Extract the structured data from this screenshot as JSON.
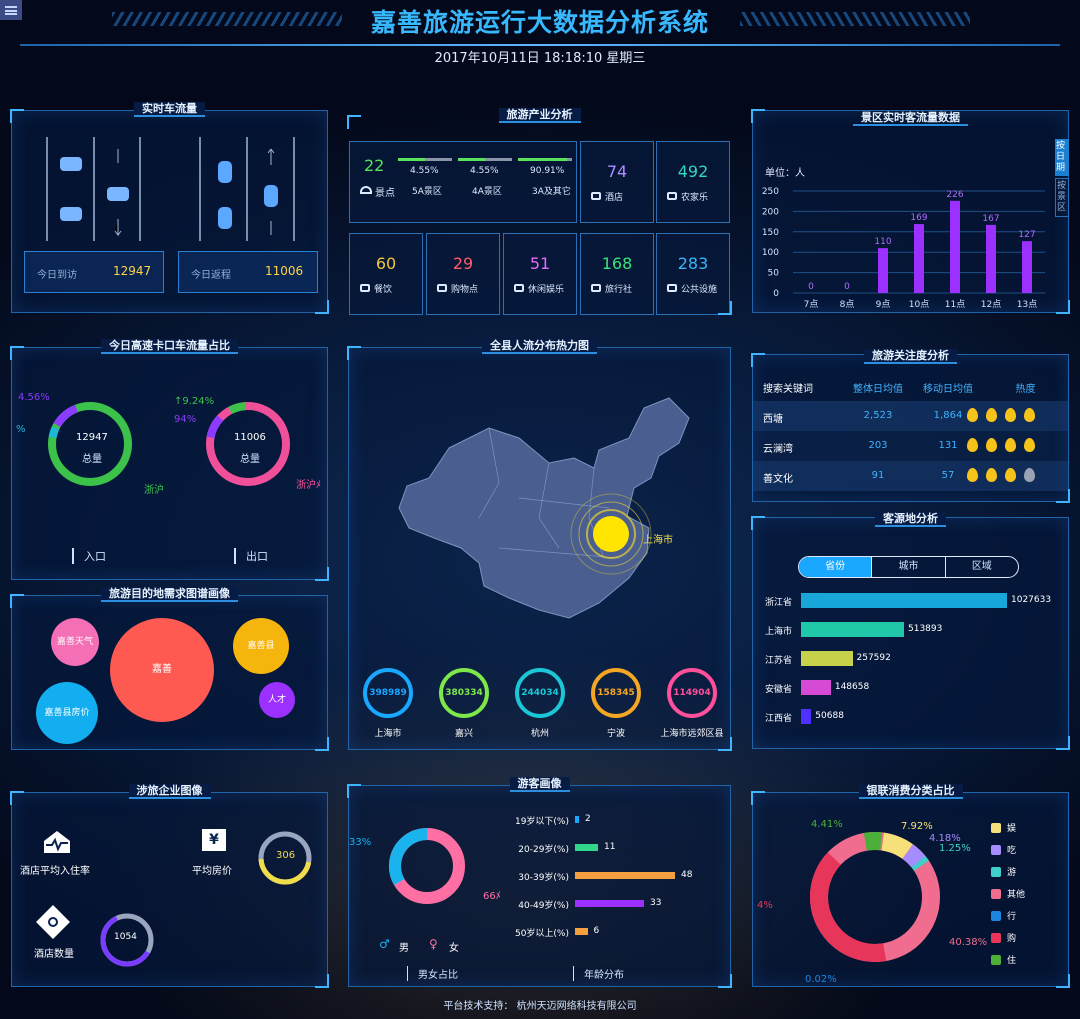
{
  "menu_icon": "hamburger-icon",
  "header": {
    "title": "嘉善旅游运行大数据分析系统",
    "datetime": "2017年10月11日 18:18:10 星期三"
  },
  "traffic": {
    "title": "实时车流量",
    "arrive_label": "今日到访",
    "arrive_value": "12947",
    "return_label": "今日返程",
    "return_value": "11006"
  },
  "industry": {
    "title": "旅游产业分析",
    "scenic": {
      "value": "22",
      "label": "景点"
    },
    "levels": [
      {
        "pct": "4.55%",
        "label": "5A景区",
        "fill": 0.0455
      },
      {
        "pct": "4.55%",
        "label": "4A景区",
        "fill": 0.0455
      },
      {
        "pct": "90.91%",
        "label": "3A及其它",
        "fill": 0.9091
      }
    ],
    "cells": [
      {
        "value": "74",
        "label": "酒店",
        "color": "#b18cff",
        "icon": "bed-icon"
      },
      {
        "value": "492",
        "label": "农家乐",
        "color": "#31d6c0",
        "icon": "umbrella-icon"
      },
      {
        "value": "60",
        "label": "餐饮",
        "color": "#f3c63b",
        "icon": "dish-icon"
      },
      {
        "value": "29",
        "label": "购物点",
        "color": "#ff5b6c",
        "icon": "bag-icon"
      },
      {
        "value": "51",
        "label": "休闲娱乐",
        "color": "#e56bff",
        "icon": "film-icon"
      },
      {
        "value": "168",
        "label": "旅行社",
        "color": "#39e37a",
        "icon": "flag-icon"
      },
      {
        "value": "283",
        "label": "公共设施",
        "color": "#39b4ff",
        "icon": "restroom-icon"
      }
    ]
  },
  "realtime": {
    "title": "景区实时客流量数据",
    "unit": "单位：人",
    "side_tabs": [
      "按日期",
      "按景区"
    ]
  },
  "chart_data": {
    "type": "bar",
    "categories": [
      "7点",
      "8点",
      "9点",
      "10点",
      "11点",
      "12点",
      "13点"
    ],
    "values": [
      0,
      0,
      110,
      169,
      226,
      167,
      127
    ],
    "ylim": [
      0,
      250
    ],
    "yticks": [
      "250",
      "200",
      "150",
      "100",
      "50",
      "0"
    ],
    "color": "#9b30ff"
  },
  "highway": {
    "title": "今日高速卡口车流量占比",
    "entry": {
      "total": "12947",
      "total_label": "总量",
      "pct_top": "4.56%",
      "pct_left": "%",
      "dest": "浙沪",
      "label": "入口"
    },
    "exit": {
      "total": "11006",
      "total_label": "总量",
      "pct_top": "↑9.24%",
      "pct_left": "94%",
      "dest": "浙沪ﾒ",
      "label": "出口"
    }
  },
  "demand": {
    "title": "旅游目的地需求图谱画像",
    "bubbles": [
      "嘉善天气",
      "嘉善",
      "嘉善县",
      "人才",
      "嘉善县房价"
    ]
  },
  "heatmap": {
    "title": "全县人流分布热力图",
    "hot_label": "上海市",
    "cities": [
      {
        "value": "398989",
        "name": "上海市",
        "color": "#1aa7ff"
      },
      {
        "value": "380334",
        "name": "嘉兴",
        "color": "#7ee84a"
      },
      {
        "value": "244034",
        "name": "杭州",
        "color": "#1bc6d6"
      },
      {
        "value": "158345",
        "name": "宁波",
        "color": "#f5a623"
      },
      {
        "value": "114904",
        "name": "上海市远郊区县",
        "color": "#ff4f9b"
      }
    ]
  },
  "attention": {
    "title": "旅游关注度分析",
    "headers": [
      "搜索关键词",
      "整体日均值",
      "移动日均值",
      "热度"
    ],
    "rows": [
      {
        "k": "西塘",
        "a": "2,523",
        "m": "1,864",
        "heat": 4
      },
      {
        "k": "云澜湾",
        "a": "203",
        "m": "131",
        "heat": 4
      },
      {
        "k": "善文化",
        "a": "91",
        "m": "57",
        "heat": 3
      }
    ]
  },
  "origin": {
    "title": "客源地分析",
    "tabs": [
      "省份",
      "城市",
      "区域"
    ],
    "rows": [
      {
        "name": "浙江省",
        "value": "1027633",
        "fill": 1,
        "color": "#18a7d8"
      },
      {
        "name": "上海市",
        "value": "513893",
        "fill": 0.5,
        "color": "#20c7a8"
      },
      {
        "name": "江苏省",
        "value": "257592",
        "fill": 0.25,
        "color": "#c7d24a"
      },
      {
        "name": "安徽省",
        "value": "148658",
        "fill": 0.145,
        "color": "#d64ad6"
      },
      {
        "name": "江西省",
        "value": "50688",
        "fill": 0.05,
        "color": "#5030ff"
      }
    ]
  },
  "enterprise": {
    "title": "涉旅企业图像",
    "occupancy_label": "酒店平均入住率",
    "price_label": "平均房价",
    "price_value": "306",
    "hotel_count_label": "酒店数量",
    "hotel_count_value": "1054",
    "currency_icon": "yen-icon"
  },
  "tourist": {
    "title": "游客画像",
    "pct_left": "33%",
    "pct_right": "66ﾒ",
    "male": "男",
    "female": "女",
    "footer_left": "男女占比",
    "footer_right": "年龄分布",
    "ages": [
      {
        "label": "19岁以下(%)",
        "value": "2",
        "fill": 0.04,
        "color": "#1aa7ff"
      },
      {
        "label": "20-29岁(%)",
        "value": "11",
        "fill": 0.23,
        "color": "#31d68a"
      },
      {
        "label": "30-39岁(%)",
        "value": "48",
        "fill": 1,
        "color": "#f5a040"
      },
      {
        "label": "40-49岁(%)",
        "value": "33",
        "fill": 0.69,
        "color": "#9b30ff"
      },
      {
        "label": "50岁以上(%)",
        "value": "6",
        "fill": 0.125,
        "color": "#f5a040"
      }
    ]
  },
  "consumption": {
    "title": "银联消费分类占比",
    "labels": [
      "4.41%",
      "7.92%",
      "4.18%",
      "1.25%",
      "4%",
      "40.38%",
      "0.02%"
    ],
    "legend": [
      {
        "name": "娱",
        "color": "#f6e07a"
      },
      {
        "name": "吃",
        "color": "#a58cff"
      },
      {
        "name": "游",
        "color": "#3fd0c9"
      },
      {
        "name": "其他",
        "color": "#f16d8f"
      },
      {
        "name": "行",
        "color": "#1a86e0"
      },
      {
        "name": "购",
        "color": "#e8365b"
      },
      {
        "name": "住",
        "color": "#4caf3a"
      }
    ]
  },
  "footer": "平台技术支持：  杭州天迈网络科技有限公司"
}
